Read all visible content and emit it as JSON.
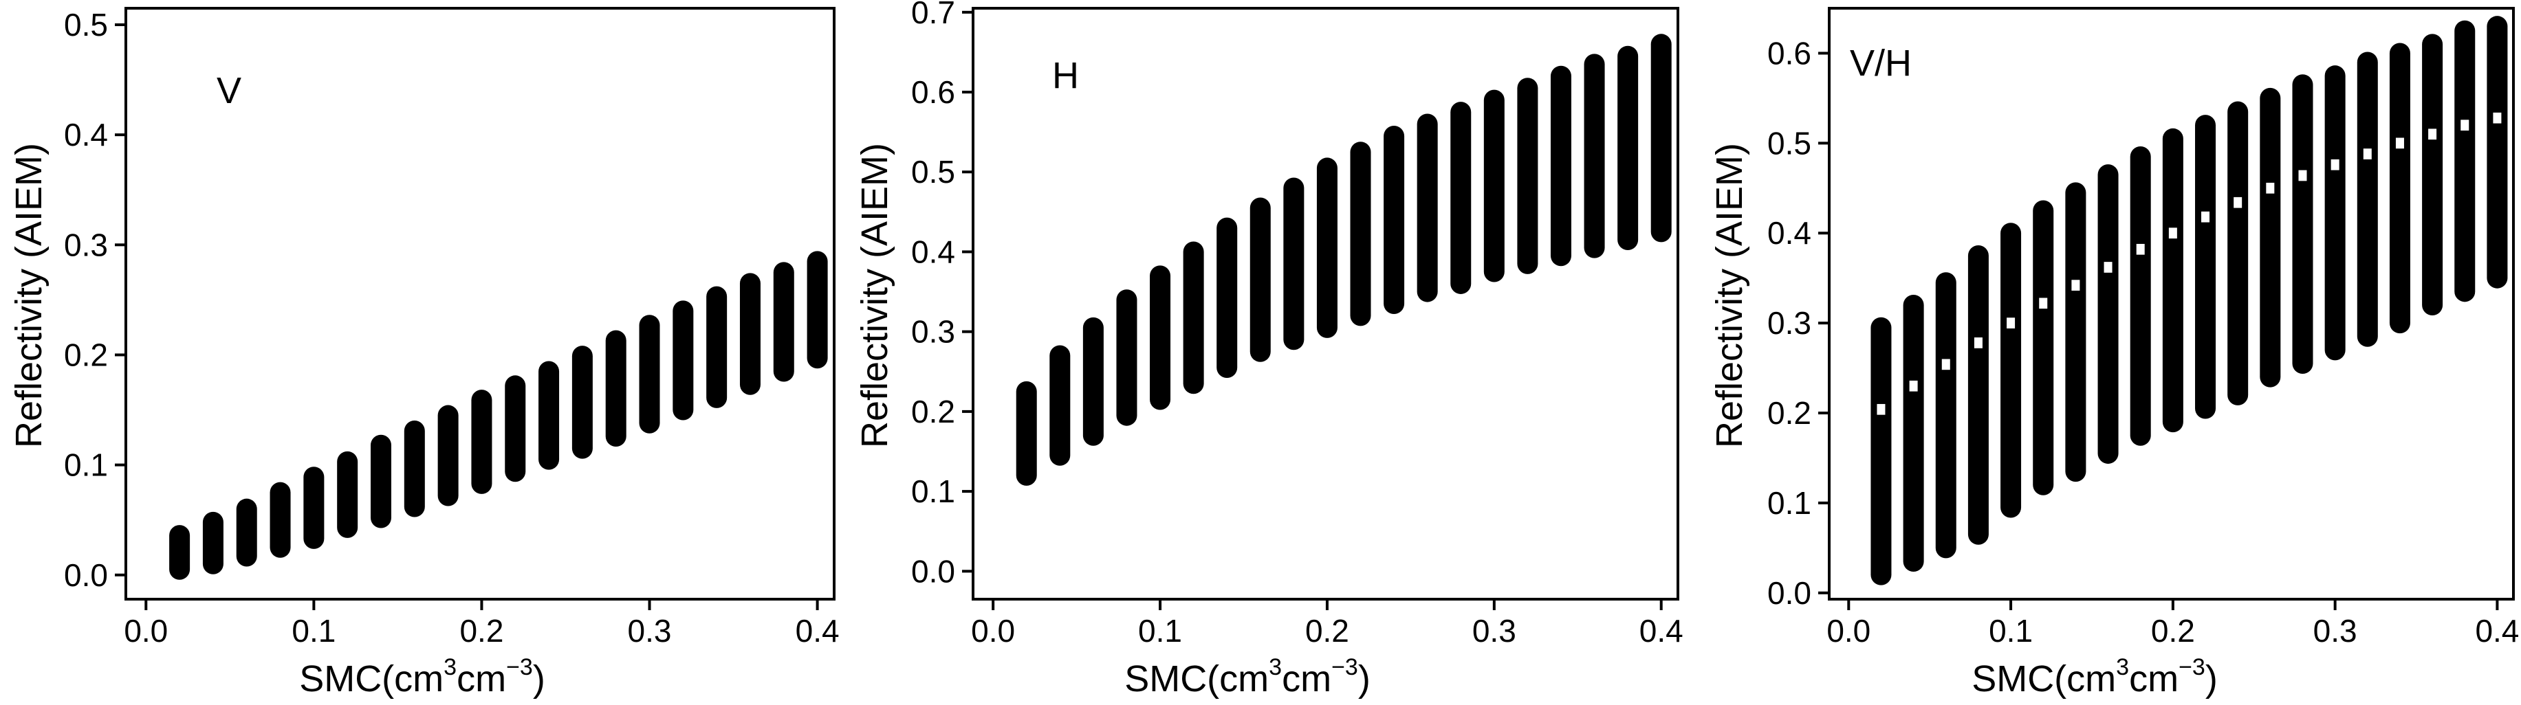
{
  "chart_data": [
    {
      "type": "scatter",
      "title": "",
      "panel_label": "V",
      "xlabel": {
        "main": "SMC(cm",
        "sup1": "3",
        "mid": "cm",
        "sup2": "−3",
        "end": ")"
      },
      "ylabel": "Reflectivity (AIEM)",
      "xlim": [
        -0.012,
        0.41
      ],
      "ylim": [
        -0.022,
        0.515
      ],
      "xticks": [
        0.0,
        0.1,
        0.2,
        0.3,
        0.4
      ],
      "xtick_labels": [
        "0.0",
        "0.1",
        "0.2",
        "0.3",
        "0.4"
      ],
      "yticks": [
        0.0,
        0.1,
        0.2,
        0.3,
        0.4,
        0.5
      ],
      "ytick_labels": [
        "0.0",
        "0.1",
        "0.2",
        "0.3",
        "0.4",
        "0.5"
      ],
      "grid": false,
      "x": [
        0.02,
        0.04,
        0.06,
        0.08,
        0.1,
        0.12,
        0.14,
        0.16,
        0.18,
        0.2,
        0.22,
        0.24,
        0.26,
        0.28,
        0.3,
        0.32,
        0.34,
        0.36,
        0.38,
        0.4
      ],
      "y_min": [
        0.005,
        0.01,
        0.017,
        0.025,
        0.033,
        0.043,
        0.052,
        0.062,
        0.072,
        0.083,
        0.094,
        0.105,
        0.115,
        0.126,
        0.138,
        0.15,
        0.161,
        0.173,
        0.185,
        0.197
      ],
      "y_max": [
        0.036,
        0.048,
        0.06,
        0.075,
        0.089,
        0.103,
        0.118,
        0.131,
        0.145,
        0.159,
        0.172,
        0.185,
        0.199,
        0.213,
        0.227,
        0.24,
        0.253,
        0.265,
        0.275,
        0.285
      ],
      "gaps": []
    },
    {
      "type": "scatter",
      "title": "",
      "panel_label": "H",
      "xlabel": {
        "main": "SMC(cm",
        "sup1": "3",
        "mid": "cm",
        "sup2": "−3",
        "end": ")"
      },
      "ylabel": "Reflectivity (AIEM)",
      "xlim": [
        -0.012,
        0.41
      ],
      "ylim": [
        -0.035,
        0.705
      ],
      "xticks": [
        0.0,
        0.1,
        0.2,
        0.3,
        0.4
      ],
      "xtick_labels": [
        "0.0",
        "0.1",
        "0.2",
        "0.3",
        "0.4"
      ],
      "yticks": [
        0.0,
        0.1,
        0.2,
        0.3,
        0.4,
        0.5,
        0.6,
        0.7
      ],
      "ytick_labels": [
        "0.0",
        "0.1",
        "0.2",
        "0.3",
        "0.4",
        "0.5",
        "0.6",
        "0.7"
      ],
      "grid": false,
      "x": [
        0.02,
        0.04,
        0.06,
        0.08,
        0.1,
        0.12,
        0.14,
        0.16,
        0.18,
        0.2,
        0.22,
        0.24,
        0.26,
        0.28,
        0.3,
        0.32,
        0.34,
        0.36,
        0.38,
        0.4
      ],
      "y_min": [
        0.12,
        0.145,
        0.17,
        0.195,
        0.215,
        0.235,
        0.255,
        0.275,
        0.29,
        0.305,
        0.32,
        0.335,
        0.35,
        0.36,
        0.375,
        0.385,
        0.395,
        0.405,
        0.415,
        0.425
      ],
      "y_max": [
        0.225,
        0.27,
        0.305,
        0.34,
        0.37,
        0.4,
        0.43,
        0.455,
        0.48,
        0.505,
        0.525,
        0.545,
        0.56,
        0.575,
        0.59,
        0.605,
        0.62,
        0.635,
        0.645,
        0.66
      ],
      "gaps": []
    },
    {
      "type": "scatter",
      "title": "",
      "panel_label": "V/H",
      "xlabel": {
        "main": "SMC(cm",
        "sup1": "3",
        "mid": "cm",
        "sup2": "−3",
        "end": ")"
      },
      "ylabel": "Reflectivity (AIEM)",
      "xlim": [
        -0.012,
        0.41
      ],
      "ylim": [
        -0.007,
        0.65
      ],
      "xticks": [
        0.0,
        0.1,
        0.2,
        0.3,
        0.4
      ],
      "xtick_labels": [
        "0.0",
        "0.1",
        "0.2",
        "0.3",
        "0.4"
      ],
      "yticks": [
        0.0,
        0.1,
        0.2,
        0.3,
        0.4,
        0.5,
        0.6
      ],
      "ytick_labels": [
        "0.0",
        "0.1",
        "0.2",
        "0.3",
        "0.4",
        "0.5",
        "0.6"
      ],
      "grid": false,
      "x": [
        0.02,
        0.04,
        0.06,
        0.08,
        0.1,
        0.12,
        0.14,
        0.16,
        0.18,
        0.2,
        0.22,
        0.24,
        0.26,
        0.28,
        0.3,
        0.32,
        0.34,
        0.36,
        0.38,
        0.4
      ],
      "y_min": [
        0.02,
        0.035,
        0.05,
        0.065,
        0.095,
        0.12,
        0.135,
        0.155,
        0.175,
        0.19,
        0.205,
        0.22,
        0.24,
        0.255,
        0.27,
        0.285,
        0.3,
        0.32,
        0.335,
        0.35
      ],
      "y_max": [
        0.295,
        0.32,
        0.345,
        0.375,
        0.4,
        0.425,
        0.445,
        0.465,
        0.485,
        0.505,
        0.52,
        0.535,
        0.55,
        0.565,
        0.575,
        0.59,
        0.6,
        0.61,
        0.625,
        0.63
      ],
      "gaps": [
        [
          [
            0.198,
            0.21
          ]
        ],
        [
          [
            0.224,
            0.236
          ]
        ],
        [
          [
            0.248,
            0.26
          ]
        ],
        [
          [
            0.272,
            0.284
          ]
        ],
        [
          [
            0.294,
            0.306
          ]
        ],
        [
          [
            0.316,
            0.328
          ]
        ],
        [
          [
            0.336,
            0.348
          ]
        ],
        [
          [
            0.356,
            0.368
          ]
        ],
        [
          [
            0.376,
            0.388
          ]
        ],
        [
          [
            0.394,
            0.406
          ]
        ],
        [
          [
            0.412,
            0.424
          ]
        ],
        [
          [
            0.428,
            0.44
          ]
        ],
        [
          [
            0.444,
            0.456
          ]
        ],
        [
          [
            0.458,
            0.47
          ]
        ],
        [
          [
            0.47,
            0.482
          ]
        ],
        [
          [
            0.482,
            0.494
          ]
        ],
        [
          [
            0.494,
            0.506
          ]
        ],
        [
          [
            0.504,
            0.516
          ]
        ],
        [
          [
            0.514,
            0.526
          ]
        ],
        [
          [
            0.522,
            0.534
          ]
        ]
      ]
    }
  ]
}
